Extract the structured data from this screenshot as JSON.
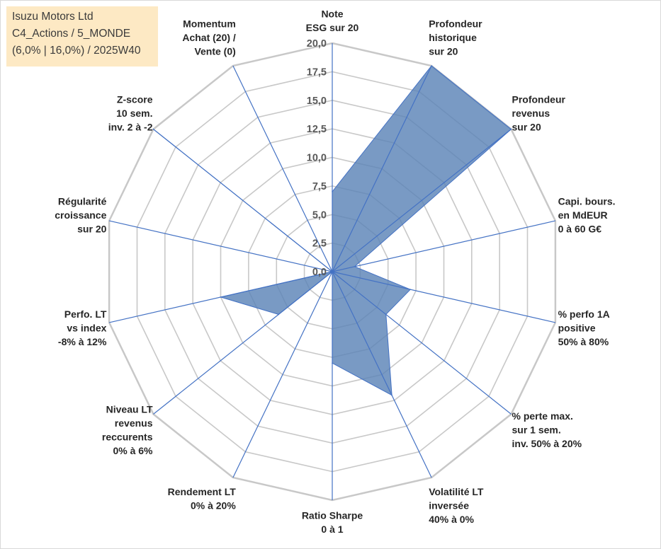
{
  "info_box": {
    "line1": "Isuzu Motors Ltd",
    "line2": "C4_Actions / 5_MONDE",
    "line3": "(6,0% | 16,0%) / 2025W40"
  },
  "colors": {
    "fill": "#5b84b7",
    "stroke": "#4472c4",
    "grid": "#c8c8c8",
    "info_bg": "#fde9c4"
  },
  "chart_data": {
    "type": "radar",
    "rmin": 0,
    "rmax": 20,
    "tick_step": 2.5,
    "tick_labels": [
      "0,0",
      "2,5",
      "5,0",
      "7,5",
      "10,0",
      "12,5",
      "15,0",
      "17,5",
      "20,0"
    ],
    "axes": [
      {
        "label": [
          "Note",
          "ESG sur 20"
        ]
      },
      {
        "label": [
          "Profondeur",
          "historique",
          "sur 20"
        ]
      },
      {
        "label": [
          "Profondeur",
          "revenus",
          "sur 20"
        ]
      },
      {
        "label": [
          "Capi. bours.",
          "en MdEUR",
          "0 à 60 G€"
        ]
      },
      {
        "label": [
          "% perfo 1A",
          "positive",
          "50% à 80%"
        ]
      },
      {
        "label": [
          "% perte max.",
          "sur 1 sem.",
          "inv. 50% à 20%"
        ]
      },
      {
        "label": [
          "Volatilité LT",
          "inversée",
          "40% à 0%"
        ]
      },
      {
        "label": [
          "Ratio Sharpe",
          "0 à 1"
        ]
      },
      {
        "label": [
          "Rendement LT",
          "0% à 20%"
        ]
      },
      {
        "label": [
          "Niveau LT",
          "revenus",
          "reccurents",
          "0% à 6%"
        ]
      },
      {
        "label": [
          "Perfo. LT",
          "vs index",
          "-8% à 12%"
        ]
      },
      {
        "label": [
          "Régularité",
          "croissance",
          "sur 20"
        ]
      },
      {
        "label": [
          "Z-score",
          "10 sem.",
          "inv. 2 à -2"
        ]
      },
      {
        "label": [
          "Momentum",
          "Achat (20) /",
          "Vente (0)"
        ]
      }
    ],
    "values": [
      7.0,
      20.0,
      20.0,
      2.0,
      7.0,
      6.0,
      12.0,
      8.0,
      0.0,
      6.0,
      10.0,
      0.0,
      20.0,
      0.0
    ],
    "grid": true
  }
}
